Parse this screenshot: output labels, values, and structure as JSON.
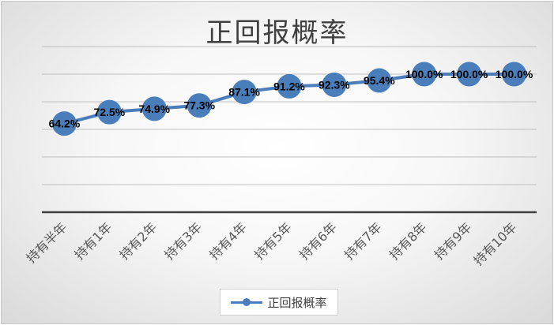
{
  "chart_data": {
    "type": "line",
    "title": "正回报概率",
    "categories": [
      "持有半年",
      "持有1年",
      "持有2年",
      "持有3年",
      "持有4年",
      "持有5年",
      "持有6年",
      "持有7年",
      "持有8年",
      "持有9年",
      "持有10年"
    ],
    "series": [
      {
        "name": "正回报概率",
        "values": [
          64.2,
          72.5,
          74.9,
          77.3,
          87.1,
          91.2,
          92.3,
          95.4,
          100.0,
          100.0,
          100.0
        ],
        "labels": [
          "64.2%",
          "72.5%",
          "74.9%",
          "77.3%",
          "87.1%",
          "91.2%",
          "92.3%",
          "95.4%",
          "100.0%",
          "100.0%",
          "100.0%"
        ]
      }
    ],
    "ylim": [
      0,
      120
    ],
    "grid": true,
    "legend": "bottom",
    "colors": {
      "series": "#4a7ebb",
      "grid": "#bfbfbf",
      "axis": "#404040",
      "label": "#000000"
    }
  }
}
